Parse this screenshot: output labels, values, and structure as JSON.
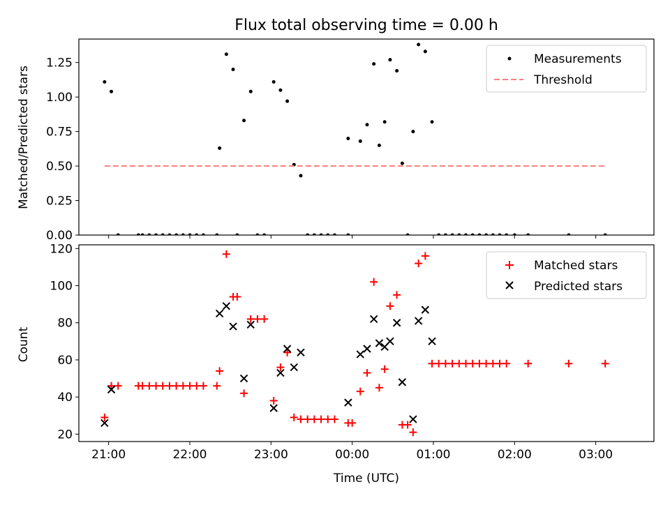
{
  "chart_data": [
    {
      "type": "scatter",
      "title": "Flux total observing time = 0.00 h",
      "xlabel": "",
      "ylabel": "Matched/Predicted stars",
      "ylim": [
        0,
        1.42
      ],
      "yticks": [
        "0.00",
        "0.25",
        "0.50",
        "0.75",
        "1.00",
        "1.25"
      ],
      "ytick_values": [
        0,
        0.25,
        0.5,
        0.75,
        1.0,
        1.25
      ],
      "xlim": [
        "20:38",
        "03:43"
      ],
      "grid": false,
      "legend_position": "top-right",
      "series": [
        {
          "name": "Measurements",
          "color": "#000000",
          "marker": "dot",
          "points": [
            [
              "20:57",
              1.11
            ],
            [
              "21:02",
              1.04
            ],
            [
              "21:07",
              0
            ],
            [
              "21:22",
              0
            ],
            [
              "21:25",
              0
            ],
            [
              "21:30",
              0
            ],
            [
              "21:35",
              0
            ],
            [
              "21:40",
              0
            ],
            [
              "21:45",
              0
            ],
            [
              "21:50",
              0
            ],
            [
              "21:55",
              0
            ],
            [
              "22:00",
              0
            ],
            [
              "22:05",
              0
            ],
            [
              "22:10",
              0
            ],
            [
              "22:20",
              0
            ],
            [
              "22:22",
              0.63
            ],
            [
              "22:27",
              1.31
            ],
            [
              "22:32",
              1.2
            ],
            [
              "22:35",
              0
            ],
            [
              "22:40",
              0.83
            ],
            [
              "22:45",
              1.04
            ],
            [
              "22:50",
              0
            ],
            [
              "22:55",
              0
            ],
            [
              "23:02",
              1.11
            ],
            [
              "23:07",
              1.05
            ],
            [
              "23:12",
              0.97
            ],
            [
              "23:17",
              0.51
            ],
            [
              "23:22",
              0.43
            ],
            [
              "23:27",
              0
            ],
            [
              "23:32",
              0
            ],
            [
              "23:37",
              0
            ],
            [
              "23:42",
              0
            ],
            [
              "23:47",
              0
            ],
            [
              "23:57",
              0.7
            ],
            [
              "23:57",
              0
            ],
            [
              "00:06",
              0.68
            ],
            [
              "00:11",
              0.8
            ],
            [
              "00:16",
              1.24
            ],
            [
              "00:20",
              0.65
            ],
            [
              "00:24",
              0.82
            ],
            [
              "00:28",
              1.27
            ],
            [
              "00:33",
              1.19
            ],
            [
              "00:37",
              0.52
            ],
            [
              "00:41",
              0
            ],
            [
              "00:45",
              0.75
            ],
            [
              "00:49",
              1.38
            ],
            [
              "00:54",
              1.33
            ],
            [
              "00:59",
              0.82
            ],
            [
              "01:04",
              0
            ],
            [
              "01:09",
              0
            ],
            [
              "01:14",
              0
            ],
            [
              "01:19",
              0
            ],
            [
              "01:24",
              0
            ],
            [
              "01:29",
              0
            ],
            [
              "01:34",
              0
            ],
            [
              "01:39",
              0
            ],
            [
              "01:44",
              0
            ],
            [
              "01:49",
              0
            ],
            [
              "01:54",
              0
            ],
            [
              "02:00",
              0
            ],
            [
              "02:10",
              0
            ],
            [
              "02:40",
              0
            ],
            [
              "03:07",
              0
            ]
          ]
        },
        {
          "name": "Threshold",
          "color": "#ff7f7f",
          "style": "dashed",
          "points": [
            [
              "20:57",
              0.5
            ],
            [
              "03:07",
              0.5
            ]
          ]
        }
      ]
    },
    {
      "type": "scatter",
      "title": "",
      "xlabel": "Time (UTC)",
      "ylabel": "Count",
      "ylim": [
        16,
        122
      ],
      "yticks": [
        "20",
        "40",
        "60",
        "80",
        "100",
        "120"
      ],
      "ytick_values": [
        20,
        40,
        60,
        80,
        100,
        120
      ],
      "xlim": [
        "20:38",
        "03:43"
      ],
      "xticks": [
        "21:00",
        "22:00",
        "23:00",
        "00:00",
        "01:00",
        "02:00",
        "03:00"
      ],
      "grid": false,
      "legend_position": "top-right",
      "series": [
        {
          "name": "Matched stars",
          "color": "#ff0000",
          "marker": "plus",
          "points": [
            [
              "20:57",
              29
            ],
            [
              "21:02",
              46
            ],
            [
              "21:07",
              46
            ],
            [
              "21:22",
              46
            ],
            [
              "21:25",
              46
            ],
            [
              "21:30",
              46
            ],
            [
              "21:35",
              46
            ],
            [
              "21:40",
              46
            ],
            [
              "21:45",
              46
            ],
            [
              "21:50",
              46
            ],
            [
              "21:55",
              46
            ],
            [
              "22:00",
              46
            ],
            [
              "22:05",
              46
            ],
            [
              "22:10",
              46
            ],
            [
              "22:20",
              46
            ],
            [
              "22:22",
              54
            ],
            [
              "22:27",
              117
            ],
            [
              "22:32",
              94
            ],
            [
              "22:35",
              94
            ],
            [
              "22:40",
              42
            ],
            [
              "22:45",
              82
            ],
            [
              "22:50",
              82
            ],
            [
              "22:55",
              82
            ],
            [
              "23:02",
              38
            ],
            [
              "23:07",
              56
            ],
            [
              "23:12",
              64
            ],
            [
              "23:17",
              29
            ],
            [
              "23:22",
              28
            ],
            [
              "23:27",
              28
            ],
            [
              "23:32",
              28
            ],
            [
              "23:37",
              28
            ],
            [
              "23:42",
              28
            ],
            [
              "23:47",
              28
            ],
            [
              "23:57",
              26
            ],
            [
              "00:00",
              26
            ],
            [
              "00:06",
              43
            ],
            [
              "00:11",
              53
            ],
            [
              "00:16",
              102
            ],
            [
              "00:20",
              45
            ],
            [
              "00:24",
              55
            ],
            [
              "00:28",
              89
            ],
            [
              "00:33",
              95
            ],
            [
              "00:37",
              25
            ],
            [
              "00:41",
              25
            ],
            [
              "00:45",
              21
            ],
            [
              "00:49",
              112
            ],
            [
              "00:54",
              116
            ],
            [
              "00:59",
              58
            ],
            [
              "01:04",
              58
            ],
            [
              "01:09",
              58
            ],
            [
              "01:14",
              58
            ],
            [
              "01:19",
              58
            ],
            [
              "01:24",
              58
            ],
            [
              "01:29",
              58
            ],
            [
              "01:34",
              58
            ],
            [
              "01:39",
              58
            ],
            [
              "01:44",
              58
            ],
            [
              "01:49",
              58
            ],
            [
              "01:54",
              58
            ],
            [
              "02:10",
              58
            ],
            [
              "02:40",
              58
            ],
            [
              "03:07",
              58
            ]
          ]
        },
        {
          "name": "Predicted stars",
          "color": "#000000",
          "marker": "x",
          "points": [
            [
              "20:57",
              26
            ],
            [
              "21:02",
              44
            ],
            [
              "22:22",
              85
            ],
            [
              "22:27",
              89
            ],
            [
              "22:32",
              78
            ],
            [
              "22:40",
              50
            ],
            [
              "22:45",
              79
            ],
            [
              "23:02",
              34
            ],
            [
              "23:07",
              53
            ],
            [
              "23:12",
              66
            ],
            [
              "23:17",
              56
            ],
            [
              "23:22",
              64
            ],
            [
              "23:57",
              37
            ],
            [
              "00:06",
              63
            ],
            [
              "00:11",
              66
            ],
            [
              "00:16",
              82
            ],
            [
              "00:20",
              69
            ],
            [
              "00:24",
              67
            ],
            [
              "00:28",
              70
            ],
            [
              "00:33",
              80
            ],
            [
              "00:37",
              48
            ],
            [
              "00:45",
              28
            ],
            [
              "00:49",
              81
            ],
            [
              "00:54",
              87
            ],
            [
              "00:59",
              70
            ]
          ]
        }
      ]
    }
  ]
}
